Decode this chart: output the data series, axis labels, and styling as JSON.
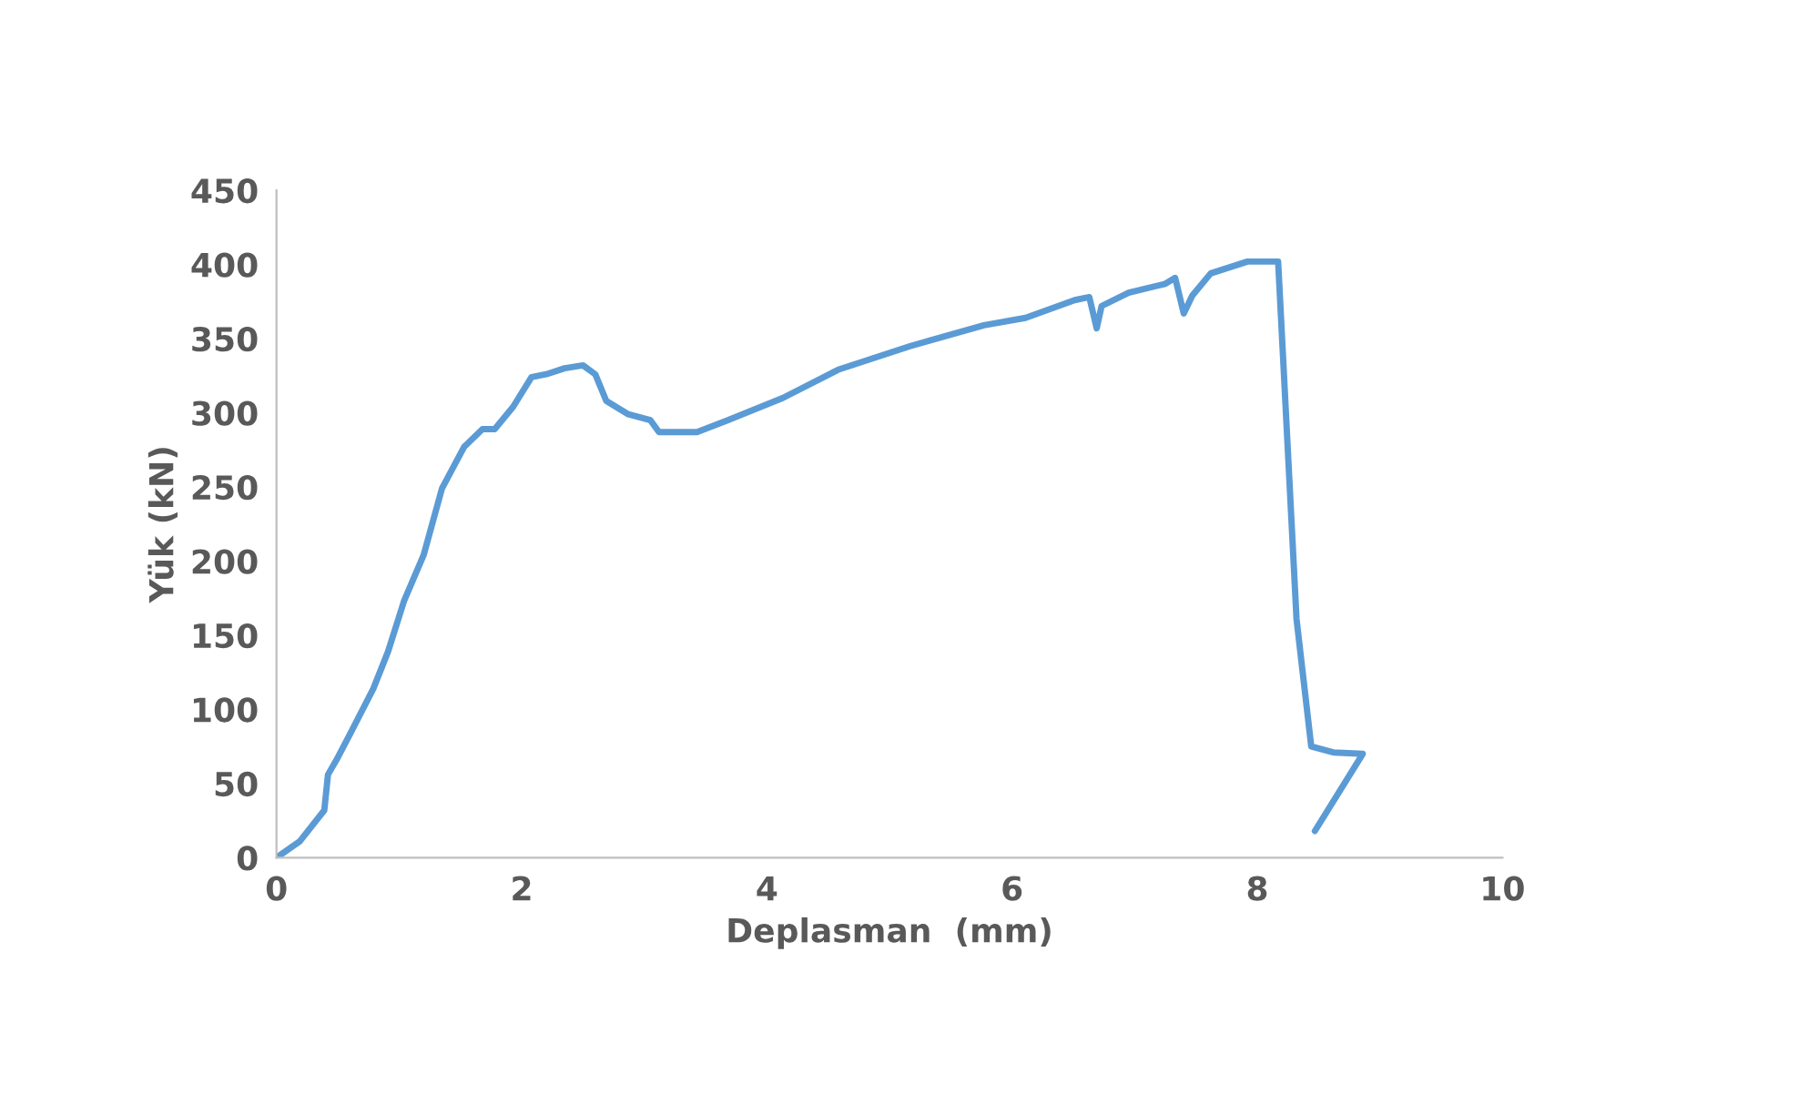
{
  "chart_data": {
    "type": "line",
    "xlabel": "Deplasman  (mm)",
    "ylabel": "Yük (kN)",
    "xlim": [
      0,
      10
    ],
    "xticks": [
      0,
      2,
      4,
      6,
      8,
      10
    ],
    "ylim": [
      0,
      450
    ],
    "yticks": [
      0,
      50,
      100,
      150,
      200,
      250,
      300,
      350,
      400,
      450
    ],
    "grid": false,
    "legend": false,
    "series": [
      {
        "color": "#5b9bd5",
        "x": [
          0,
          0.19,
          0.39,
          0.42,
          0.49,
          0.61,
          0.79,
          0.91,
          1.04,
          1.2,
          1.35,
          1.53,
          1.68,
          1.78,
          1.93,
          2.08,
          2.2,
          2.35,
          2.5,
          2.6,
          2.69,
          2.87,
          3.05,
          3.12,
          3.43,
          3.68,
          4.13,
          4.58,
          5.17,
          5.77,
          6.11,
          6.51,
          6.63,
          6.69,
          6.73,
          6.95,
          7.25,
          7.33,
          7.4,
          7.47,
          7.62,
          7.92,
          8.14,
          8.17,
          8.32,
          8.44,
          8.62,
          8.86,
          8.47
        ],
        "values": [
          0,
          11,
          32,
          56,
          66,
          85,
          114,
          139,
          173,
          204,
          249,
          277,
          289,
          289,
          304,
          324,
          326,
          330,
          332,
          326,
          308,
          299,
          295,
          287,
          287,
          295,
          310,
          329,
          345,
          359,
          364,
          376,
          378,
          357,
          372,
          381,
          387,
          391,
          367,
          379,
          394,
          402,
          402,
          402,
          161,
          75,
          71,
          70,
          18
        ]
      }
    ]
  }
}
